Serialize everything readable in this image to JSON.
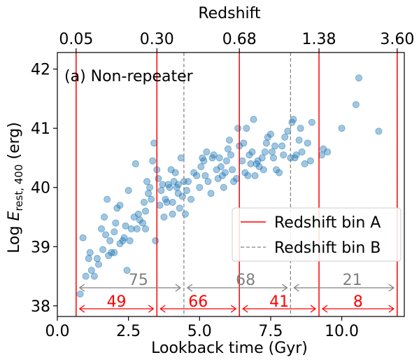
{
  "chart_data": {
    "type": "scatter",
    "title": "",
    "panel_label": "(a) Non-repeater",
    "xlabel": "Lookback time (Gyr)",
    "ylabel_prefix": "Log ",
    "ylabel_symbol": "E",
    "ylabel_subscript": "rest, 400",
    "ylabel_suffix": " (erg)",
    "top_xlabel": "Redshift",
    "xlim": [
      0,
      12.2
    ],
    "ylim": [
      37.82,
      42.28
    ],
    "xticks": [
      0.0,
      2.5,
      5.0,
      7.5,
      10.0
    ],
    "xtick_labels": [
      "0.0",
      "2.5",
      "5.0",
      "7.5",
      "10.0"
    ],
    "yticks": [
      38,
      39,
      40,
      41,
      42
    ],
    "ytick_labels": [
      "38",
      "39",
      "40",
      "41",
      "42"
    ],
    "top_ticks": [
      {
        "x": 0.66,
        "label": "0.05"
      },
      {
        "x": 3.5,
        "label": "0.30"
      },
      {
        "x": 6.4,
        "label": "0.68"
      },
      {
        "x": 9.2,
        "label": "1.38"
      },
      {
        "x": 11.95,
        "label": "3.60"
      }
    ],
    "legend": {
      "position": "lower-right",
      "entries": [
        {
          "label": "Redshift bin A",
          "style": "solid",
          "color": "#ff0000"
        },
        {
          "label": "Redshift bin B",
          "style": "dashed",
          "color": "#808080"
        }
      ]
    },
    "bin_A_edges": [
      0.66,
      3.5,
      6.4,
      9.2,
      11.95
    ],
    "bin_B_edges": [
      0.66,
      4.45,
      8.2,
      11.95
    ],
    "bin_A_counts": [
      {
        "from": 0.66,
        "to": 3.5,
        "label": "49"
      },
      {
        "from": 3.5,
        "to": 6.4,
        "label": "66"
      },
      {
        "from": 6.4,
        "to": 9.2,
        "label": "41"
      },
      {
        "from": 9.2,
        "to": 11.95,
        "label": "8"
      }
    ],
    "bin_B_counts": [
      {
        "from": 0.66,
        "to": 4.45,
        "label": "75"
      },
      {
        "from": 4.45,
        "to": 8.2,
        "label": "68"
      },
      {
        "from": 8.2,
        "to": 11.95,
        "label": "21"
      }
    ],
    "point_color": "#1f77b4",
    "bin_A_color": "#ff0000",
    "bin_B_color": "#808080",
    "points": [
      [
        0.8,
        38.2
      ],
      [
        0.9,
        39.15
      ],
      [
        1.0,
        38.5
      ],
      [
        1.1,
        38.8
      ],
      [
        1.15,
        38.9
      ],
      [
        1.2,
        38.6
      ],
      [
        1.3,
        38.5
      ],
      [
        1.4,
        38.8
      ],
      [
        1.55,
        39.3
      ],
      [
        1.6,
        38.95
      ],
      [
        1.65,
        39.5
      ],
      [
        1.7,
        39.2
      ],
      [
        1.75,
        39.8
      ],
      [
        1.8,
        38.85
      ],
      [
        1.85,
        39.1
      ],
      [
        1.9,
        38.9
      ],
      [
        2.0,
        39.25
      ],
      [
        2.05,
        39.4
      ],
      [
        2.1,
        39.65
      ],
      [
        2.2,
        39.7
      ],
      [
        2.2,
        39.05
      ],
      [
        2.3,
        39.1
      ],
      [
        2.4,
        39.35
      ],
      [
        2.45,
        38.6
      ],
      [
        2.5,
        39.95
      ],
      [
        2.55,
        39.1
      ],
      [
        2.6,
        39.3
      ],
      [
        2.7,
        39.5
      ],
      [
        2.75,
        40.4
      ],
      [
        2.8,
        39.3
      ],
      [
        2.9,
        39.45
      ],
      [
        3.0,
        39.4
      ],
      [
        3.05,
        39.75
      ],
      [
        3.1,
        39.6
      ],
      [
        3.15,
        40.1
      ],
      [
        3.2,
        39.9
      ],
      [
        3.25,
        40.0
      ],
      [
        3.3,
        39.8
      ],
      [
        3.35,
        40.45
      ],
      [
        3.4,
        40.75
      ],
      [
        3.45,
        39.1
      ],
      [
        3.5,
        40.3
      ],
      [
        3.6,
        39.7
      ],
      [
        3.7,
        40.05
      ],
      [
        3.75,
        39.5
      ],
      [
        3.8,
        39.8
      ],
      [
        3.85,
        39.75
      ],
      [
        3.9,
        40.05
      ],
      [
        3.95,
        40.0
      ],
      [
        4.0,
        40.3
      ],
      [
        4.05,
        39.55
      ],
      [
        4.1,
        40.1
      ],
      [
        4.15,
        40.25
      ],
      [
        4.2,
        40.0
      ],
      [
        4.25,
        39.9
      ],
      [
        4.3,
        39.65
      ],
      [
        4.35,
        40.5
      ],
      [
        4.4,
        39.85
      ],
      [
        4.5,
        39.55
      ],
      [
        4.6,
        40.1
      ],
      [
        4.7,
        39.8
      ],
      [
        4.8,
        40.25
      ],
      [
        4.9,
        40.2
      ],
      [
        5.0,
        40.0
      ],
      [
        5.05,
        40.35
      ],
      [
        5.1,
        40.5
      ],
      [
        5.15,
        40.45
      ],
      [
        5.2,
        40.2
      ],
      [
        5.3,
        40.1
      ],
      [
        5.4,
        39.9
      ],
      [
        5.5,
        40.55
      ],
      [
        5.6,
        40.3
      ],
      [
        5.7,
        40.5
      ],
      [
        5.8,
        40.2
      ],
      [
        5.85,
        40.0
      ],
      [
        5.9,
        40.25
      ],
      [
        6.0,
        40.65
      ],
      [
        6.05,
        40.8
      ],
      [
        6.1,
        40.55
      ],
      [
        6.2,
        40.1
      ],
      [
        6.3,
        40.15
      ],
      [
        6.35,
        41.0
      ],
      [
        6.4,
        40.7
      ],
      [
        6.5,
        40.45
      ],
      [
        6.6,
        40.25
      ],
      [
        6.65,
        41.0
      ],
      [
        6.7,
        40.2
      ],
      [
        6.8,
        40.4
      ],
      [
        6.85,
        40.6
      ],
      [
        6.9,
        41.15
      ],
      [
        7.0,
        40.4
      ],
      [
        7.1,
        40.35
      ],
      [
        7.2,
        40.5
      ],
      [
        7.3,
        40.6
      ],
      [
        7.35,
        40.75
      ],
      [
        7.4,
        40.85
      ],
      [
        7.5,
        40.9
      ],
      [
        7.55,
        40.6
      ],
      [
        7.6,
        40.5
      ],
      [
        7.7,
        40.3
      ],
      [
        7.8,
        40.25
      ],
      [
        7.9,
        40.7
      ],
      [
        8.0,
        40.85
      ],
      [
        8.1,
        40.95
      ],
      [
        8.2,
        40.5
      ],
      [
        8.25,
        41.1
      ],
      [
        8.3,
        41.15
      ],
      [
        8.4,
        40.55
      ],
      [
        8.5,
        40.8
      ],
      [
        8.55,
        41.0
      ],
      [
        8.6,
        40.6
      ],
      [
        8.7,
        40.4
      ],
      [
        8.8,
        40.75
      ],
      [
        8.9,
        40.45
      ],
      [
        8.95,
        41.1
      ],
      [
        9.3,
        40.55
      ],
      [
        9.35,
        40.65
      ],
      [
        9.5,
        40.6
      ],
      [
        10.0,
        41.0
      ],
      [
        10.5,
        41.4
      ],
      [
        10.6,
        41.85
      ],
      [
        11.3,
        40.95
      ],
      [
        1.45,
        38.7
      ],
      [
        2.0,
        38.9
      ],
      [
        4.55,
        39.95
      ],
      [
        5.65,
        40.15
      ],
      [
        6.75,
        40.55
      ],
      [
        7.65,
        40.7
      ],
      [
        8.35,
        40.5
      ],
      [
        2.85,
        39.55
      ],
      [
        3.1,
        39.3
      ],
      [
        4.45,
        40.1
      ],
      [
        5.25,
        40.6
      ],
      [
        5.95,
        40.45
      ],
      [
        6.55,
        40.75
      ],
      [
        7.25,
        40.3
      ],
      [
        3.55,
        40.15
      ],
      [
        4.25,
        40.05
      ],
      [
        6.15,
        40.3
      ],
      [
        5.45,
        40.5
      ],
      [
        7.05,
        40.45
      ],
      [
        7.95,
        40.55
      ],
      [
        2.35,
        39.15
      ],
      [
        4.05,
        39.75
      ],
      [
        6.95,
        40.2
      ],
      [
        3.65,
        39.95
      ],
      [
        5.75,
        40.35
      ]
    ]
  }
}
